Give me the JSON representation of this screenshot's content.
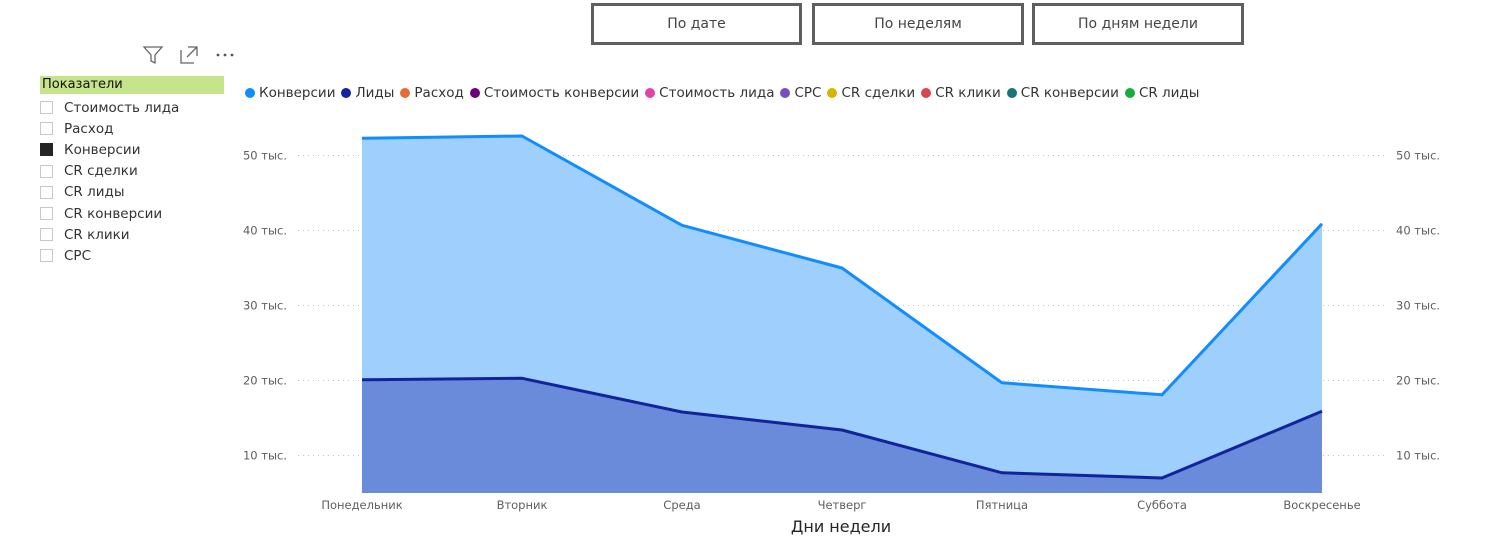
{
  "tabs": [
    {
      "label": "По дате"
    },
    {
      "label": "По неделям"
    },
    {
      "label": "По дням недели"
    }
  ],
  "slicer": {
    "title": "Показатели",
    "items": [
      {
        "label": "Стоимость лида",
        "checked": false
      },
      {
        "label": "Расход",
        "checked": false
      },
      {
        "label": "Конверсии",
        "checked": true
      },
      {
        "label": "CR сделки",
        "checked": false
      },
      {
        "label": "CR лиды",
        "checked": false
      },
      {
        "label": "CR конверсии",
        "checked": false
      },
      {
        "label": "CR клики",
        "checked": false
      },
      {
        "label": "CPC",
        "checked": false
      }
    ]
  },
  "toolbar_icons": [
    "filter-icon",
    "focus-mode-icon",
    "more-options-icon"
  ],
  "chart_data": {
    "type": "area",
    "legend": [
      {
        "name": "Конверсии",
        "color": "#118DFF"
      },
      {
        "name": "Лиды",
        "color": "#12239E"
      },
      {
        "name": "Расход",
        "color": "#E66C37"
      },
      {
        "name": "Стоимость конверсии",
        "color": "#6B007B"
      },
      {
        "name": "Стоимость лида",
        "color": "#E044A7"
      },
      {
        "name": "CPC",
        "color": "#744EC2"
      },
      {
        "name": "CR сделки",
        "color": "#D9B300"
      },
      {
        "name": "CR клики",
        "color": "#D64550"
      },
      {
        "name": "CR конверсии",
        "color": "#197278"
      },
      {
        "name": "CR лиды",
        "color": "#1AAB40"
      }
    ],
    "categories": [
      "Понедельник",
      "Вторник",
      "Среда",
      "Четверг",
      "Пятница",
      "Суббота",
      "Воскресенье"
    ],
    "series": [
      {
        "name": "Конверсии",
        "values": [
          52300,
          52600,
          40700,
          35000,
          19700,
          18100,
          40900
        ],
        "color": "#118DFF",
        "fill": "#9FCFFD"
      },
      {
        "name": "Лиды",
        "values": [
          20100,
          20300,
          15800,
          13400,
          7700,
          7000,
          15900
        ],
        "color": "#12239E",
        "fill": "#6A8BD9"
      }
    ],
    "xlabel": "Дни недели",
    "ylim": [
      5000,
      55000
    ],
    "yticks": [
      {
        "value": 10000,
        "label": "10 тыс."
      },
      {
        "value": 20000,
        "label": "20 тыс."
      },
      {
        "value": 30000,
        "label": "30 тыс."
      },
      {
        "value": 40000,
        "label": "40 тыс."
      },
      {
        "value": 50000,
        "label": "50 тыс."
      }
    ],
    "grid": true,
    "legend_position": "top-left"
  }
}
